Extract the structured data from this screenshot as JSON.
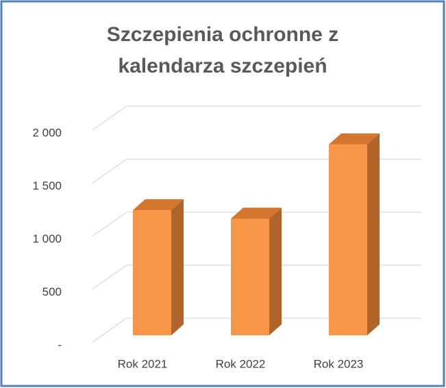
{
  "chart_data": {
    "type": "bar3d",
    "title": "Szczepienia ochronne z kalendarza szczepień",
    "categories": [
      "Rok 2021",
      "Rok 2022",
      "Rok 2023"
    ],
    "values": [
      1180,
      1100,
      1800
    ],
    "color": "#f79646",
    "side_color": "#b0642a",
    "top_color": "#d47530",
    "ylim": [
      0,
      2000
    ],
    "yticks": [
      {
        "value": 0,
        "label": "-"
      },
      500,
      {
        "value": 1000,
        "label": "1 000"
      },
      {
        "value": 1500,
        "label": "1 500"
      },
      {
        "value": 2000,
        "label": "2 000"
      }
    ],
    "grid": true
  }
}
